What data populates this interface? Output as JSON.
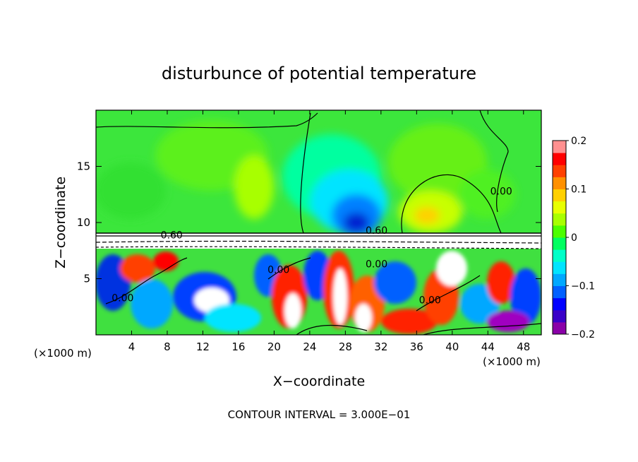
{
  "chart_data": {
    "type": "heatmap",
    "title": "disturbunce of potential temperature",
    "xlabel": "X−coordinate",
    "ylabel": "Z−coordinate",
    "x_unit_label_left": "(×1000 m)",
    "x_unit_label_right": "(×1000 m)",
    "footer": "CONTOUR INTERVAL = 3.000E−01",
    "xlim": [
      0,
      50
    ],
    "ylim": [
      0,
      20
    ],
    "x_ticks": [
      4,
      8,
      12,
      16,
      20,
      24,
      28,
      32,
      36,
      40,
      44,
      48
    ],
    "y_ticks": [
      5,
      10,
      15
    ],
    "contour_labels": [
      {
        "text": "0.60",
        "x": 8.5,
        "y": 8.6
      },
      {
        "text": "0.60",
        "x": 31.5,
        "y": 9.0
      },
      {
        "text": "0.00",
        "x": 45.5,
        "y": 12.5
      },
      {
        "text": "0.00",
        "x": 20.5,
        "y": 5.5
      },
      {
        "text": "0.00",
        "x": 3.0,
        "y": 3.0
      },
      {
        "text": "0.00",
        "x": 37.5,
        "y": 2.8
      },
      {
        "text": "0.00",
        "x": 31.5,
        "y": 6.0
      }
    ],
    "colorbar": {
      "min": -0.2,
      "max": 0.2,
      "tick_labels": [
        "0.2",
        "0.1",
        "0",
        "−0.1",
        "−0.2"
      ],
      "tick_values": [
        0.2,
        0.1,
        0,
        -0.1,
        -0.2
      ],
      "colors": [
        "#8a00a8",
        "#3a00c8",
        "#0000ff",
        "#0060ff",
        "#00a8ff",
        "#00e4ff",
        "#00ffc8",
        "#00ff60",
        "#4cff00",
        "#a8ff00",
        "#e8ff00",
        "#ffd000",
        "#ff9000",
        "#ff4000",
        "#ff0000",
        "#ff9090"
      ]
    }
  }
}
